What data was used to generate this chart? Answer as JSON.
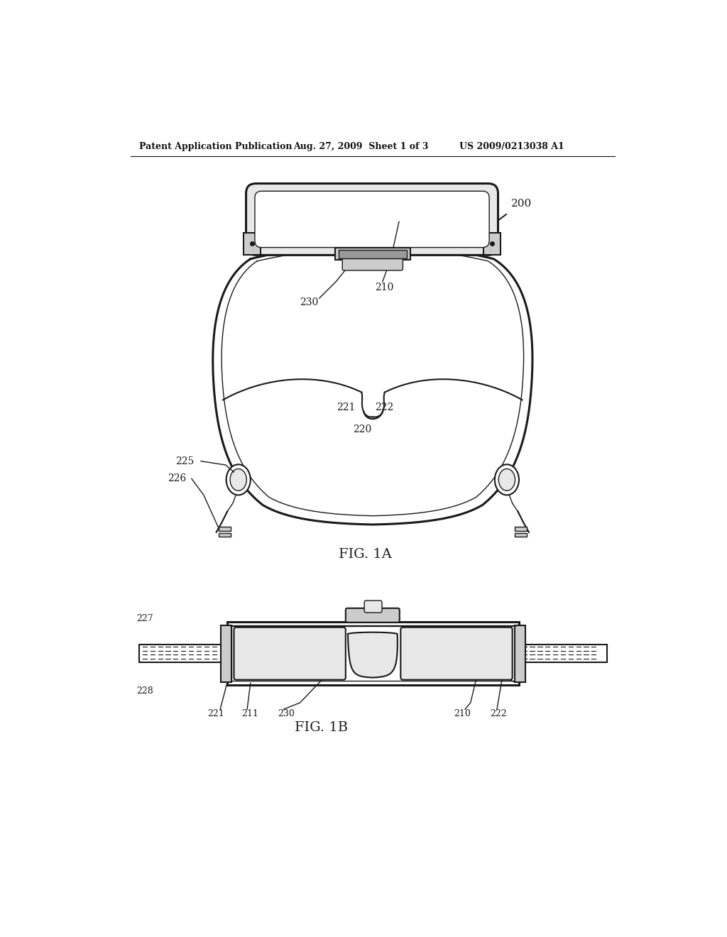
{
  "bg_color": "#ffffff",
  "header_left": "Patent Application Publication",
  "header_mid": "Aug. 27, 2009  Sheet 1 of 3",
  "header_right": "US 2009/0213038 A1",
  "fig1a_label": "FIG. 1A",
  "fig1b_label": "FIG. 1B",
  "ref_200": "200",
  "ref_210": "210",
  "ref_220": "220",
  "ref_221": "221",
  "ref_222": "222",
  "ref_225": "225",
  "ref_226": "226",
  "ref_227": "227",
  "ref_228": "228",
  "ref_230": "230",
  "ref_211": "211"
}
